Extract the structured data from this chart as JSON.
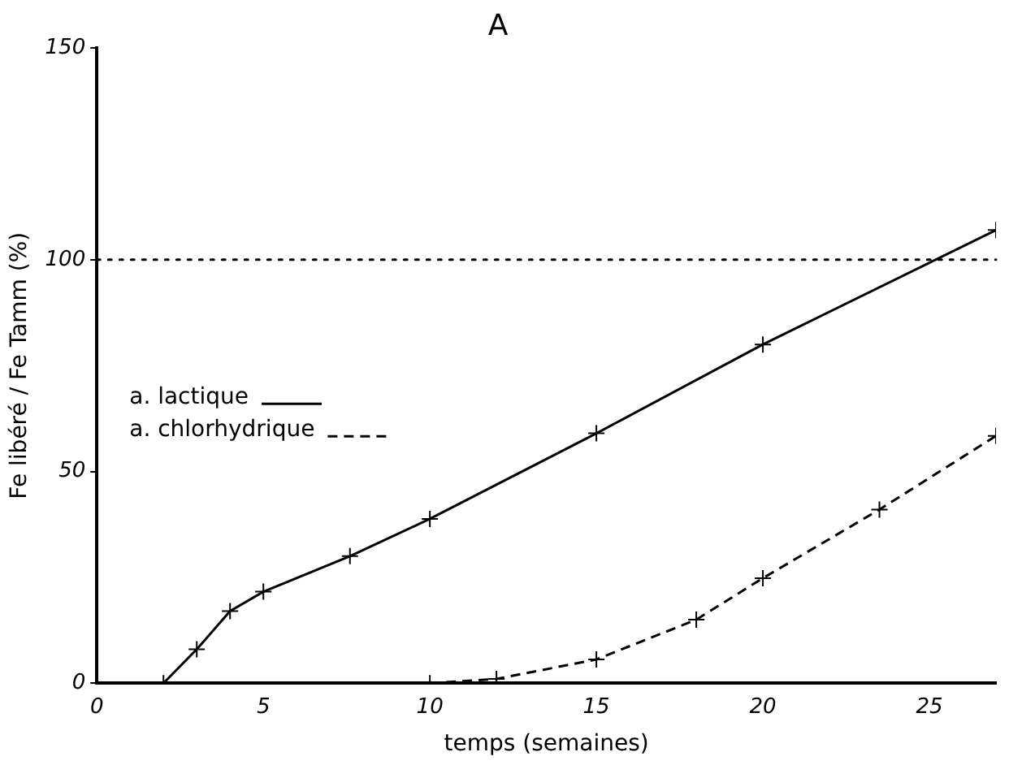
{
  "chart_data": {
    "type": "line",
    "title": "A",
    "xlabel": "temps (semaines)",
    "ylabel": "Fe libéré / Fe Tamm (%)",
    "xlim": [
      0,
      27
    ],
    "xticks": [
      0,
      5,
      10,
      15,
      20,
      25
    ],
    "ylim": [
      0,
      150
    ],
    "yticks": [
      0,
      50,
      100,
      150
    ],
    "series": [
      {
        "name": "a. lactique",
        "color": "#000000",
        "line_style": "solid",
        "x": [
          2,
          3,
          4,
          5,
          7.6,
          10,
          15,
          20,
          27
        ],
        "values": [
          0,
          8,
          17,
          21.6,
          30,
          38.8,
          59,
          80,
          107
        ]
      },
      {
        "name": "a. chlorhydrique",
        "color": "#000000",
        "line_style": "dashed",
        "x": [
          10,
          12,
          15,
          18,
          20,
          23.5,
          27
        ],
        "values": [
          0,
          1,
          5.6,
          15,
          24.8,
          41,
          58.4
        ]
      }
    ],
    "ref_lines": [
      {
        "axis": "y",
        "value": 100,
        "line_style": "dotted",
        "color": "#000000"
      }
    ],
    "marker": "cross",
    "grid": false,
    "legend": "left"
  }
}
